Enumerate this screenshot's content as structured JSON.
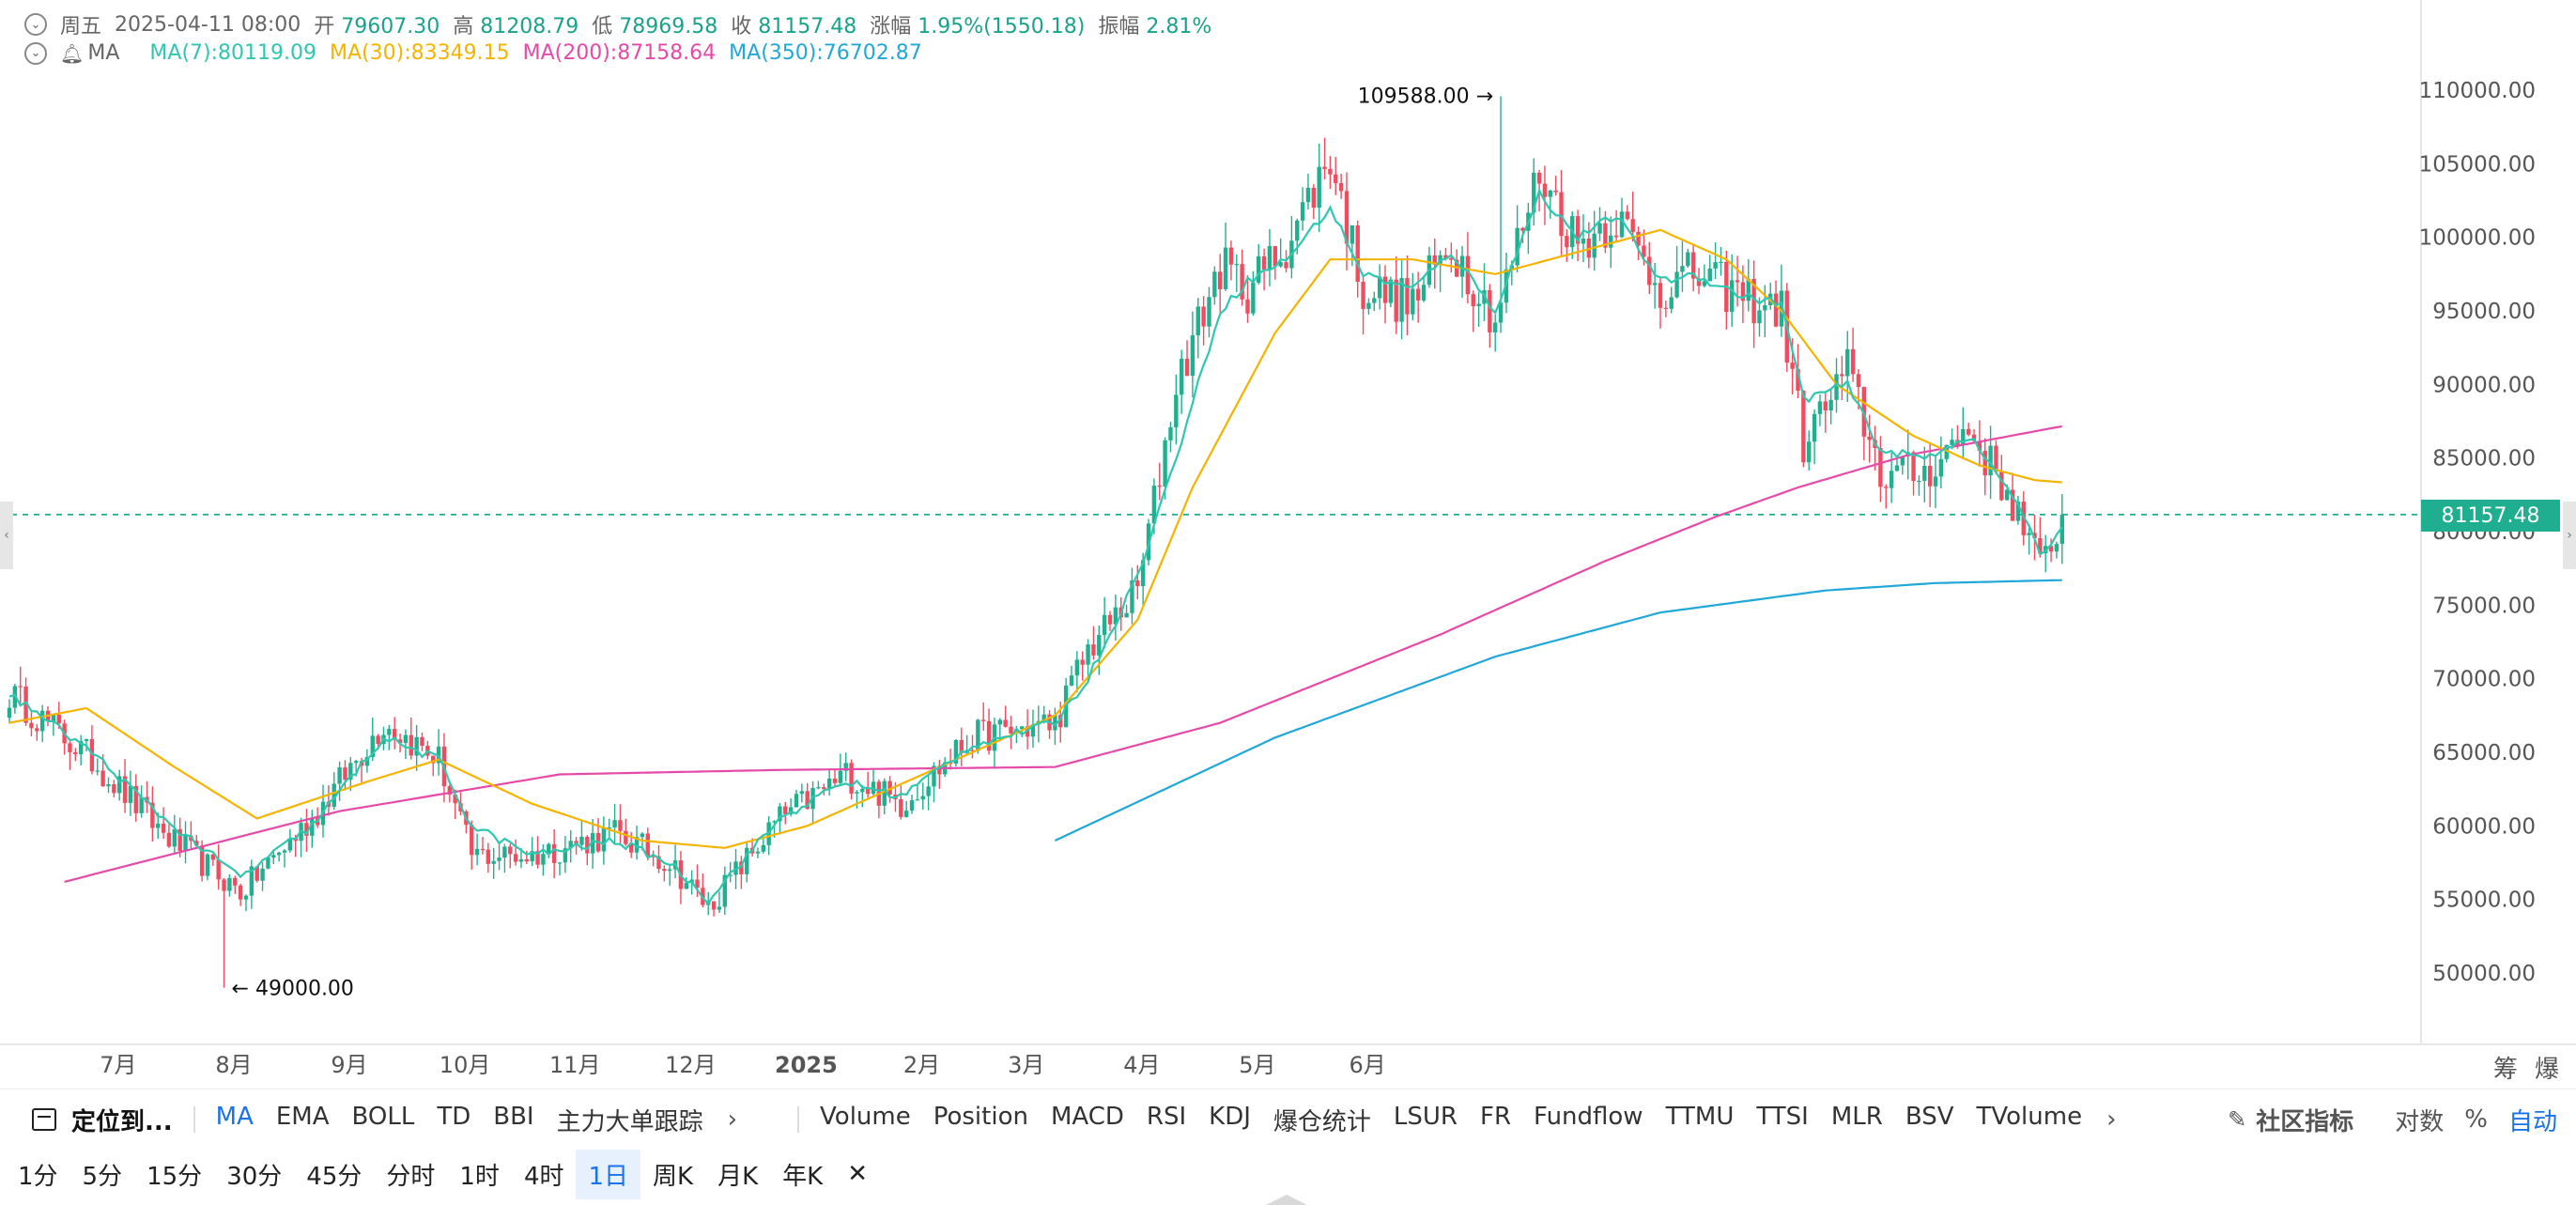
{
  "header": {
    "day": "周五",
    "datetime": "2025-04-11 08:00",
    "open_label": "开",
    "open": "79607.30",
    "high_label": "高",
    "high": "81208.79",
    "low_label": "低",
    "low": "78969.58",
    "close_label": "收",
    "close": "81157.48",
    "change_label": "涨幅",
    "change": "1.95%(1550.18)",
    "amplitude_label": "振幅",
    "amplitude": "2.81%"
  },
  "ma_row": {
    "label": "MA",
    "ma7": "MA(7):80119.09",
    "ma30": "MA(30):83349.15",
    "ma200": "MA(200):87158.64",
    "ma350": "MA(350):76702.87"
  },
  "colors": {
    "up": "#20b08f",
    "down": "#ef4d5f",
    "ma7": "#2fc7b0",
    "ma30": "#f5b400",
    "ma200": "#e64aa8",
    "ma350": "#21a8d8",
    "accent": "#1a73e8",
    "price_tag": "#1fae8f"
  },
  "chart_data": {
    "type": "candlestick",
    "y_ticks": [
      "110000.00",
      "105000.00",
      "100000.00",
      "95000.00",
      "90000.00",
      "85000.00",
      "80000.00",
      "75000.00",
      "70000.00",
      "65000.00",
      "60000.00",
      "55000.00",
      "50000.00"
    ],
    "ylim": [
      45000,
      113000
    ],
    "x_ticks": [
      "7月",
      "8月",
      "9月",
      "10月",
      "11月",
      "12月",
      "2025",
      "2月",
      "3月",
      "4月",
      "5月",
      "6月"
    ],
    "current_price": "81157.48",
    "annotations": {
      "high": "109588.00",
      "low": "49000.00"
    },
    "series_anchors": {
      "close": [
        [
          0,
          69000
        ],
        [
          15,
          64500
        ],
        [
          28,
          59500
        ],
        [
          42,
          55500
        ],
        [
          55,
          60500
        ],
        [
          68,
          67000
        ],
        [
          78,
          64500
        ],
        [
          84,
          58000
        ],
        [
          95,
          58000
        ],
        [
          110,
          59500
        ],
        [
          120,
          57500
        ],
        [
          127,
          54500
        ],
        [
          140,
          60500
        ],
        [
          152,
          63500
        ],
        [
          162,
          61500
        ],
        [
          175,
          66000
        ],
        [
          190,
          67000
        ],
        [
          196,
          72000
        ],
        [
          205,
          76000
        ],
        [
          212,
          90000
        ],
        [
          220,
          98000
        ],
        [
          225,
          96500
        ],
        [
          232,
          99500
        ],
        [
          240,
          105500
        ],
        [
          246,
          96500
        ],
        [
          255,
          95500
        ],
        [
          262,
          99500
        ],
        [
          270,
          94500
        ],
        [
          278,
          104500
        ],
        [
          285,
          99500
        ],
        [
          292,
          101500
        ],
        [
          300,
          96500
        ],
        [
          306,
          97500
        ],
        [
          315,
          96000
        ],
        [
          322,
          95000
        ],
        [
          326,
          86000
        ],
        [
          334,
          91000
        ],
        [
          340,
          84000
        ],
        [
          348,
          84000
        ],
        [
          356,
          87000
        ],
        [
          364,
          82000
        ],
        [
          369,
          77500
        ],
        [
          373,
          81157
        ]
      ],
      "ma7": [
        [
          0,
          69000
        ],
        [
          15,
          65000
        ],
        [
          28,
          60500
        ],
        [
          42,
          56500
        ],
        [
          55,
          60000
        ],
        [
          68,
          66000
        ],
        [
          78,
          64500
        ],
        [
          84,
          60000
        ],
        [
          95,
          58000
        ],
        [
          110,
          59000
        ],
        [
          120,
          57500
        ],
        [
          127,
          55000
        ],
        [
          140,
          60500
        ],
        [
          152,
          63000
        ],
        [
          162,
          62000
        ],
        [
          175,
          65500
        ],
        [
          190,
          67000
        ],
        [
          196,
          70000
        ],
        [
          205,
          77000
        ],
        [
          212,
          85000
        ],
        [
          220,
          95000
        ],
        [
          225,
          97000
        ],
        [
          232,
          98500
        ],
        [
          240,
          102000
        ],
        [
          246,
          97500
        ],
        [
          255,
          96500
        ],
        [
          262,
          99000
        ],
        [
          270,
          95000
        ],
        [
          278,
          103000
        ],
        [
          285,
          100000
        ],
        [
          292,
          101500
        ],
        [
          300,
          97000
        ],
        [
          306,
          97500
        ],
        [
          315,
          96000
        ],
        [
          322,
          95500
        ],
        [
          326,
          89000
        ],
        [
          334,
          90000
        ],
        [
          340,
          85500
        ],
        [
          348,
          85000
        ],
        [
          356,
          86500
        ],
        [
          364,
          82500
        ],
        [
          369,
          78500
        ],
        [
          373,
          80119
        ]
      ],
      "ma30": [
        [
          0,
          67000
        ],
        [
          14,
          68000
        ],
        [
          30,
          64000
        ],
        [
          45,
          60500
        ],
        [
          65,
          63000
        ],
        [
          78,
          64500
        ],
        [
          95,
          61500
        ],
        [
          115,
          59000
        ],
        [
          130,
          58500
        ],
        [
          145,
          60000
        ],
        [
          160,
          62500
        ],
        [
          175,
          65000
        ],
        [
          190,
          67500
        ],
        [
          205,
          74000
        ],
        [
          215,
          83000
        ],
        [
          230,
          93500
        ],
        [
          240,
          98500
        ],
        [
          255,
          98500
        ],
        [
          270,
          97500
        ],
        [
          285,
          99000
        ],
        [
          300,
          100500
        ],
        [
          312,
          98500
        ],
        [
          322,
          95000
        ],
        [
          332,
          90000
        ],
        [
          346,
          86500
        ],
        [
          358,
          84500
        ],
        [
          368,
          83500
        ],
        [
          373,
          83349
        ]
      ],
      "ma200": [
        [
          10,
          56200
        ],
        [
          60,
          61000
        ],
        [
          100,
          63500
        ],
        [
          140,
          63800
        ],
        [
          190,
          64000
        ],
        [
          220,
          67000
        ],
        [
          260,
          73000
        ],
        [
          290,
          78000
        ],
        [
          310,
          81000
        ],
        [
          325,
          83000
        ],
        [
          345,
          85200
        ],
        [
          373,
          87158
        ]
      ],
      "ma350": [
        [
          190,
          59000
        ],
        [
          230,
          66000
        ],
        [
          270,
          71500
        ],
        [
          300,
          74500
        ],
        [
          330,
          76000
        ],
        [
          350,
          76500
        ],
        [
          373,
          76703
        ]
      ]
    }
  },
  "indicator_bar": {
    "locate": "定位到...",
    "main": [
      "MA",
      "EMA",
      "BOLL",
      "TD",
      "BBI",
      "主力大单跟踪"
    ],
    "sub": [
      "Volume",
      "Position",
      "MACD",
      "RSI",
      "KDJ",
      "爆仓统计",
      "LSUR",
      "FR",
      "Fundflow",
      "TTMU",
      "TTSI",
      "MLR",
      "BSV",
      "TVolume"
    ],
    "community": "社区指标",
    "log": "对数",
    "percent": "%",
    "auto": "自动"
  },
  "right_labels": {
    "chips": "筹",
    "explode": "爆"
  },
  "timeframes": [
    "1分",
    "5分",
    "15分",
    "30分",
    "45分",
    "分时",
    "1时",
    "4时",
    "1日",
    "周K",
    "月K",
    "年K"
  ],
  "active_timeframe": "1日"
}
